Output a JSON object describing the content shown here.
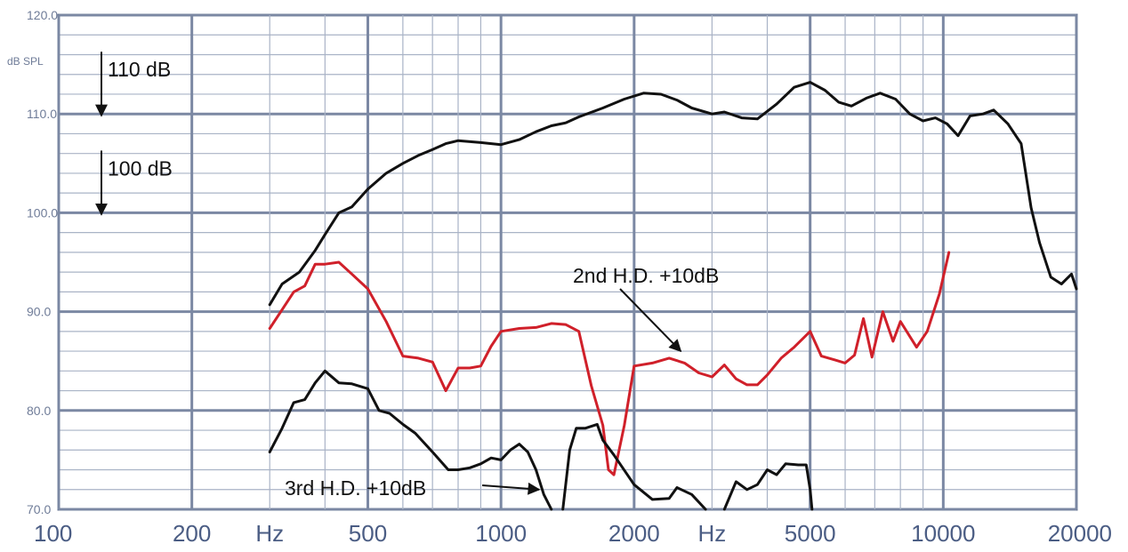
{
  "chart_data": {
    "type": "line",
    "x_scale": "log",
    "xlim": [
      100,
      20000
    ],
    "ylim": [
      70,
      120
    ],
    "grid": true,
    "y_unit_label": "dB SPL",
    "y_ticks": [
      "120.0",
      "110.0",
      "100.0",
      "90.0",
      "80.0",
      "70.0"
    ],
    "x_tick_labels": [
      {
        "value": 100,
        "text": "100"
      },
      {
        "value": 200,
        "text": "200"
      },
      {
        "value": 300,
        "text": "Hz"
      },
      {
        "value": 500,
        "text": "500"
      },
      {
        "value": 1000,
        "text": "1000"
      },
      {
        "value": 2000,
        "text": "2000"
      },
      {
        "value": 3000,
        "text": "Hz"
      },
      {
        "value": 5000,
        "text": "5000"
      },
      {
        "value": 10000,
        "text": "10000"
      },
      {
        "value": 20000,
        "text": "20000"
      }
    ],
    "series": [
      {
        "color": "#111111",
        "points": [
          [
            300,
            90.7
          ],
          [
            320,
            92.8
          ],
          [
            350,
            94.0
          ],
          [
            380,
            96.2
          ],
          [
            400,
            97.8
          ],
          [
            430,
            100.0
          ],
          [
            460,
            100.6
          ],
          [
            500,
            102.4
          ],
          [
            550,
            104.0
          ],
          [
            600,
            105.0
          ],
          [
            650,
            105.8
          ],
          [
            700,
            106.4
          ],
          [
            750,
            107.0
          ],
          [
            800,
            107.3
          ],
          [
            900,
            107.1
          ],
          [
            1000,
            106.9
          ],
          [
            1100,
            107.4
          ],
          [
            1200,
            108.2
          ],
          [
            1300,
            108.8
          ],
          [
            1400,
            109.1
          ],
          [
            1500,
            109.7
          ],
          [
            1700,
            110.6
          ],
          [
            1900,
            111.5
          ],
          [
            2100,
            112.1
          ],
          [
            2300,
            112.0
          ],
          [
            2500,
            111.4
          ],
          [
            2700,
            110.6
          ],
          [
            3000,
            110.0
          ],
          [
            3200,
            110.2
          ],
          [
            3500,
            109.6
          ],
          [
            3800,
            109.5
          ],
          [
            4200,
            111.0
          ],
          [
            4600,
            112.7
          ],
          [
            5000,
            113.2
          ],
          [
            5400,
            112.4
          ],
          [
            5800,
            111.2
          ],
          [
            6200,
            110.8
          ],
          [
            6700,
            111.6
          ],
          [
            7200,
            112.1
          ],
          [
            7800,
            111.5
          ],
          [
            8400,
            110.0
          ],
          [
            9000,
            109.3
          ],
          [
            9600,
            109.6
          ],
          [
            10200,
            109.0
          ],
          [
            10800,
            107.8
          ],
          [
            11500,
            109.8
          ],
          [
            12300,
            110.0
          ],
          [
            13000,
            110.4
          ],
          [
            14000,
            109.0
          ],
          [
            15000,
            107.0
          ],
          [
            15800,
            100.5
          ],
          [
            16500,
            97.0
          ],
          [
            17500,
            93.5
          ],
          [
            18500,
            92.8
          ],
          [
            19500,
            93.8
          ],
          [
            20000,
            92.3
          ]
        ]
      },
      {
        "name": "2nd H.D. +10dB",
        "color": "#d0202a",
        "points": [
          [
            300,
            88.3
          ],
          [
            320,
            90.2
          ],
          [
            340,
            92.0
          ],
          [
            360,
            92.6
          ],
          [
            380,
            94.8
          ],
          [
            400,
            94.8
          ],
          [
            430,
            95.0
          ],
          [
            460,
            93.8
          ],
          [
            500,
            92.3
          ],
          [
            550,
            89.0
          ],
          [
            600,
            85.5
          ],
          [
            650,
            85.3
          ],
          [
            700,
            84.9
          ],
          [
            750,
            82.0
          ],
          [
            800,
            84.3
          ],
          [
            850,
            84.3
          ],
          [
            900,
            84.5
          ],
          [
            950,
            86.5
          ],
          [
            1000,
            88.0
          ],
          [
            1100,
            88.3
          ],
          [
            1200,
            88.4
          ],
          [
            1300,
            88.8
          ],
          [
            1400,
            88.7
          ],
          [
            1500,
            88.0
          ],
          [
            1600,
            82.5
          ],
          [
            1700,
            78.5
          ],
          [
            1750,
            74.0
          ],
          [
            1800,
            73.5
          ],
          [
            1900,
            78.5
          ],
          [
            2000,
            84.5
          ],
          [
            2200,
            84.8
          ],
          [
            2400,
            85.3
          ],
          [
            2600,
            84.8
          ],
          [
            2800,
            83.8
          ],
          [
            3000,
            83.4
          ],
          [
            3200,
            84.6
          ],
          [
            3400,
            83.2
          ],
          [
            3600,
            82.6
          ],
          [
            3800,
            82.6
          ],
          [
            4000,
            83.6
          ],
          [
            4300,
            85.3
          ],
          [
            4600,
            86.4
          ],
          [
            5000,
            88.0
          ],
          [
            5300,
            85.5
          ],
          [
            5700,
            85.1
          ],
          [
            6000,
            84.8
          ],
          [
            6300,
            85.6
          ],
          [
            6600,
            89.3
          ],
          [
            6900,
            85.4
          ],
          [
            7300,
            90.0
          ],
          [
            7700,
            87.0
          ],
          [
            8000,
            89.0
          ],
          [
            8400,
            87.5
          ],
          [
            8700,
            86.4
          ],
          [
            9200,
            88.0
          ],
          [
            9800,
            91.8
          ],
          [
            10300,
            96.0
          ]
        ]
      },
      {
        "name": "3rd H.D. +10dB",
        "color": "#111111",
        "segments": [
          [
            [
              300,
              75.8
            ],
            [
              320,
              78.2
            ],
            [
              340,
              80.8
            ],
            [
              360,
              81.1
            ],
            [
              380,
              82.8
            ],
            [
              400,
              84.0
            ],
            [
              430,
              82.8
            ],
            [
              460,
              82.7
            ],
            [
              500,
              82.2
            ],
            [
              530,
              80.0
            ],
            [
              560,
              79.7
            ],
            [
              600,
              78.6
            ],
            [
              640,
              77.7
            ],
            [
              700,
              75.8
            ],
            [
              760,
              74.0
            ],
            [
              800,
              74.0
            ],
            [
              850,
              74.2
            ],
            [
              900,
              74.6
            ],
            [
              950,
              75.2
            ],
            [
              1000,
              75.0
            ],
            [
              1050,
              76.0
            ],
            [
              1100,
              76.6
            ],
            [
              1150,
              75.8
            ],
            [
              1200,
              74.0
            ],
            [
              1250,
              71.5
            ],
            [
              1300,
              70.0
            ]
          ],
          [
            [
              1380,
              70.0
            ],
            [
              1430,
              76.0
            ],
            [
              1480,
              78.2
            ],
            [
              1550,
              78.2
            ],
            [
              1650,
              78.6
            ],
            [
              1700,
              77.0
            ],
            [
              1800,
              75.5
            ],
            [
              2000,
              72.5
            ],
            [
              2200,
              71.0
            ],
            [
              2400,
              71.1
            ],
            [
              2500,
              72.2
            ],
            [
              2700,
              71.5
            ],
            [
              2900,
              70.0
            ]
          ],
          [
            [
              3200,
              70.0
            ],
            [
              3400,
              72.8
            ],
            [
              3600,
              72.0
            ],
            [
              3800,
              72.5
            ],
            [
              4000,
              74.0
            ],
            [
              4200,
              73.5
            ],
            [
              4400,
              74.6
            ],
            [
              4700,
              74.5
            ],
            [
              4900,
              74.5
            ],
            [
              5000,
              72.0
            ],
            [
              5050,
              70.0
            ]
          ]
        ]
      }
    ],
    "annotations": [
      {
        "text": "110 dB",
        "arrow": "down"
      },
      {
        "text": "100 dB",
        "arrow": "down"
      },
      {
        "text": "2nd H.D. +10dB",
        "arrow_to": [
          2550,
          86.0
        ]
      },
      {
        "text": "3rd H.D. +10dB",
        "arrow_to": [
          1220,
          72.0
        ]
      }
    ]
  }
}
